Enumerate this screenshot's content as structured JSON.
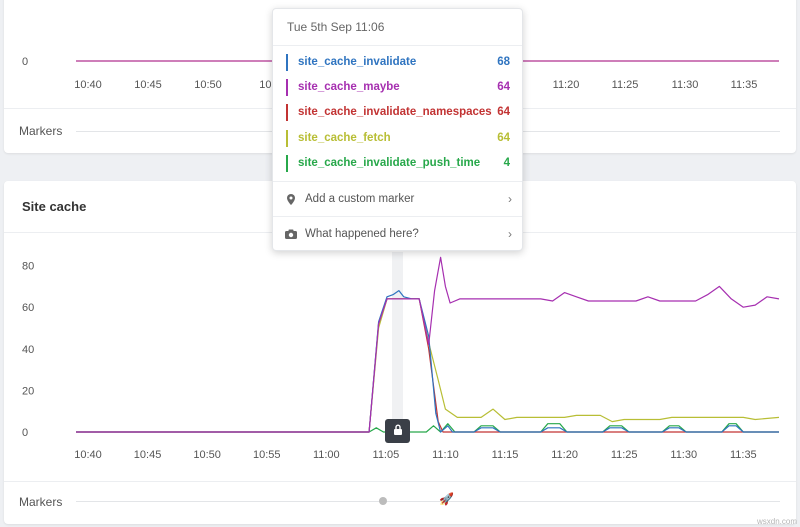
{
  "top_panel": {
    "y_axis": [
      {
        "label": "0",
        "value": 0
      }
    ],
    "x_ticks": [
      "10:40",
      "10:45",
      "10:50",
      "10:5",
      "11:20",
      "11:25",
      "11:30",
      "11:35"
    ],
    "markers_label": "Markers",
    "series_color": "#b0308f"
  },
  "main_panel": {
    "title": "Site cache",
    "markers_label": "Markers"
  },
  "chart_data": {
    "type": "line",
    "title": "Site cache",
    "x_ticks": [
      "10:40",
      "10:45",
      "10:50",
      "10:55",
      "11:00",
      "11:05",
      "11:10",
      "11:15",
      "11:20",
      "11:25",
      "11:30",
      "11:35"
    ],
    "y_ticks": [
      0,
      20,
      40,
      60,
      80
    ],
    "ylim": [
      0,
      85
    ],
    "grid": false,
    "series": [
      {
        "name": "site_cache_invalidate",
        "color": "#2f74c0",
        "points": [
          [
            0,
            0
          ],
          [
            24.6,
            0
          ],
          [
            25.4,
            53
          ],
          [
            26.1,
            65
          ],
          [
            26.6,
            66
          ],
          [
            27.1,
            68
          ],
          [
            27.5,
            65
          ],
          [
            28.2,
            64
          ],
          [
            28.8,
            64
          ],
          [
            29.6,
            46
          ],
          [
            30.2,
            9
          ],
          [
            30.6,
            0
          ],
          [
            31.2,
            3
          ],
          [
            31.6,
            0
          ],
          [
            33.4,
            0
          ],
          [
            34.0,
            2
          ],
          [
            35.0,
            2
          ],
          [
            35.6,
            0
          ],
          [
            39.0,
            0
          ],
          [
            39.6,
            2
          ],
          [
            40.6,
            2
          ],
          [
            41.2,
            0
          ],
          [
            44.2,
            0
          ],
          [
            44.8,
            2
          ],
          [
            45.8,
            2
          ],
          [
            46.4,
            0
          ],
          [
            49.2,
            0
          ],
          [
            49.8,
            2
          ],
          [
            50.6,
            2
          ],
          [
            51.2,
            0
          ],
          [
            54.2,
            0
          ],
          [
            54.8,
            3
          ],
          [
            55.4,
            3
          ],
          [
            56.0,
            0
          ],
          [
            59.0,
            0
          ]
        ]
      },
      {
        "name": "site_cache_maybe",
        "color": "#a62fb0",
        "points": [
          [
            0,
            0
          ],
          [
            24.6,
            0
          ],
          [
            25.4,
            52
          ],
          [
            26.1,
            64
          ],
          [
            27.2,
            64
          ],
          [
            28.8,
            64
          ],
          [
            29.6,
            42
          ],
          [
            30.1,
            68
          ],
          [
            30.6,
            84
          ],
          [
            31.0,
            70
          ],
          [
            31.4,
            62
          ],
          [
            32.2,
            64
          ],
          [
            36.0,
            64
          ],
          [
            39.0,
            64
          ],
          [
            40.0,
            63
          ],
          [
            41.0,
            67
          ],
          [
            42.0,
            65
          ],
          [
            43.0,
            63
          ],
          [
            47.0,
            63
          ],
          [
            48.0,
            65
          ],
          [
            49.0,
            63
          ],
          [
            52.0,
            63
          ],
          [
            53.0,
            66
          ],
          [
            54.0,
            70
          ],
          [
            55.0,
            64
          ],
          [
            56.0,
            60
          ],
          [
            57.0,
            61
          ],
          [
            58.0,
            65
          ],
          [
            59.0,
            64
          ]
        ]
      },
      {
        "name": "site_cache_invalidate_namespaces",
        "color": "#c23333",
        "points": [
          [
            0,
            0
          ],
          [
            24.6,
            0
          ],
          [
            25.4,
            52
          ],
          [
            26.1,
            64
          ],
          [
            27.2,
            64
          ],
          [
            28.8,
            64
          ],
          [
            29.6,
            40
          ],
          [
            30.4,
            5
          ],
          [
            30.8,
            0
          ],
          [
            59.0,
            0
          ]
        ]
      },
      {
        "name": "site_cache_fetch",
        "color": "#b8be35",
        "points": [
          [
            0,
            0
          ],
          [
            24.6,
            0
          ],
          [
            25.4,
            50
          ],
          [
            26.1,
            64
          ],
          [
            27.2,
            64
          ],
          [
            28.8,
            64
          ],
          [
            29.6,
            43
          ],
          [
            30.4,
            25
          ],
          [
            31.0,
            11
          ],
          [
            32.0,
            7
          ],
          [
            33.0,
            7
          ],
          [
            34.0,
            7
          ],
          [
            35.0,
            11
          ],
          [
            36.0,
            6
          ],
          [
            37.0,
            7
          ],
          [
            40.0,
            7
          ],
          [
            41.0,
            7
          ],
          [
            42.0,
            8
          ],
          [
            44.0,
            8
          ],
          [
            45.0,
            5
          ],
          [
            46.0,
            6
          ],
          [
            49.0,
            6
          ],
          [
            50.0,
            7
          ],
          [
            52.0,
            7
          ],
          [
            53.0,
            7
          ],
          [
            56.0,
            7
          ],
          [
            57.0,
            6
          ],
          [
            59.0,
            7
          ]
        ]
      },
      {
        "name": "site_cache_invalidate_push_time",
        "color": "#27a84a",
        "points": [
          [
            0,
            0
          ],
          [
            24.6,
            0
          ],
          [
            25.2,
            2
          ],
          [
            25.8,
            0
          ],
          [
            29.4,
            0
          ],
          [
            30.0,
            3
          ],
          [
            30.6,
            0
          ],
          [
            31.2,
            4
          ],
          [
            31.8,
            0
          ],
          [
            33.4,
            0
          ],
          [
            34.0,
            3
          ],
          [
            35.0,
            3
          ],
          [
            35.6,
            0
          ],
          [
            39.0,
            0
          ],
          [
            39.6,
            4
          ],
          [
            40.6,
            4
          ],
          [
            41.2,
            0
          ],
          [
            44.2,
            0
          ],
          [
            44.8,
            3
          ],
          [
            45.8,
            3
          ],
          [
            46.4,
            0
          ],
          [
            49.2,
            0
          ],
          [
            49.8,
            3
          ],
          [
            50.6,
            3
          ],
          [
            51.2,
            0
          ],
          [
            54.2,
            0
          ],
          [
            54.8,
            4
          ],
          [
            55.4,
            4
          ],
          [
            56.0,
            0
          ],
          [
            59.0,
            0
          ]
        ]
      }
    ]
  },
  "tooltip": {
    "timestamp": "Tue 5th Sep 11:06",
    "entries": [
      {
        "name": "site_cache_invalidate",
        "value": "68",
        "color": "#2f74c0"
      },
      {
        "name": "site_cache_maybe",
        "value": "64",
        "color": "#a62fb0"
      },
      {
        "name": "site_cache_invalidate_namespaces",
        "value": "64",
        "color": "#c23333"
      },
      {
        "name": "site_cache_fetch",
        "value": "64",
        "color": "#b8be35"
      },
      {
        "name": "site_cache_invalidate_push_time",
        "value": "4",
        "color": "#27a84a"
      }
    ],
    "add_marker_label": "Add a custom marker",
    "what_happened_label": "What happened here?",
    "icons": [
      "map-pin-icon",
      "camera-icon",
      "chevron-right-icon",
      "lock-icon",
      "rocket-icon"
    ]
  },
  "watermark": "wsxdn.com"
}
